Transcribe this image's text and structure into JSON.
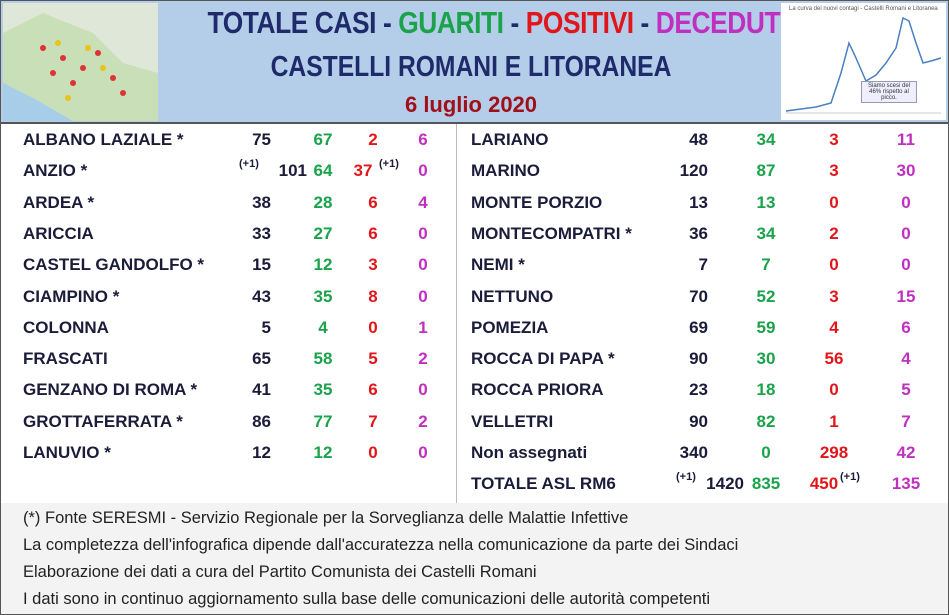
{
  "header": {
    "title_parts": [
      "TOTALE CASI",
      "GUARITI",
      "POSITIVI",
      "DECEDUTI"
    ],
    "title_separator": "-",
    "subtitle": "CASTELLI ROMANI E LITORANEA",
    "date": "6 luglio 2020",
    "chart_caption": "La curva dei nuovi contagi - Castelli Romani e Litoranea",
    "chart_note": "Siamo scesi del 46% rispetto al picco."
  },
  "table": {
    "left": [
      {
        "name": "ALBANO LAZIALE *",
        "total": "75",
        "guariti": "67",
        "positivi": "2",
        "deceduti": "6"
      },
      {
        "name": "ANZIO *",
        "total": "101",
        "total_note": "(+1)",
        "guariti": "64",
        "positivi": "37",
        "positivi_note": "(+1)",
        "deceduti": "0"
      },
      {
        "name": "ARDEA *",
        "total": "38",
        "guariti": "28",
        "positivi": "6",
        "deceduti": "4"
      },
      {
        "name": "ARICCIA",
        "total": "33",
        "guariti": "27",
        "positivi": "6",
        "deceduti": "0"
      },
      {
        "name": "CASTEL GANDOLFO *",
        "total": "15",
        "guariti": "12",
        "positivi": "3",
        "deceduti": "0"
      },
      {
        "name": "CIAMPINO *",
        "total": "43",
        "guariti": "35",
        "positivi": "8",
        "deceduti": "0"
      },
      {
        "name": "COLONNA",
        "total": "5",
        "guariti": "4",
        "positivi": "0",
        "deceduti": "1"
      },
      {
        "name": "FRASCATI",
        "total": "65",
        "guariti": "58",
        "positivi": "5",
        "deceduti": "2"
      },
      {
        "name": "GENZANO DI ROMA *",
        "total": "41",
        "guariti": "35",
        "positivi": "6",
        "deceduti": "0"
      },
      {
        "name": "GROTTAFERRATA *",
        "total": "86",
        "guariti": "77",
        "positivi": "7",
        "deceduti": "2"
      },
      {
        "name": "LANUVIO *",
        "total": "12",
        "guariti": "12",
        "positivi": "0",
        "deceduti": "0"
      }
    ],
    "right": [
      {
        "name": "LARIANO",
        "total": "48",
        "guariti": "34",
        "positivi": "3",
        "deceduti": "11"
      },
      {
        "name": "MARINO",
        "total": "120",
        "guariti": "87",
        "positivi": "3",
        "deceduti": "30"
      },
      {
        "name": "MONTE PORZIO",
        "total": "13",
        "guariti": "13",
        "positivi": "0",
        "deceduti": "0"
      },
      {
        "name": "MONTECOMPATRI *",
        "total": "36",
        "guariti": "34",
        "positivi": "2",
        "deceduti": "0"
      },
      {
        "name": "NEMI *",
        "total": "7",
        "guariti": "7",
        "positivi": "0",
        "deceduti": "0"
      },
      {
        "name": "NETTUNO",
        "total": "70",
        "guariti": "52",
        "positivi": "3",
        "deceduti": "15"
      },
      {
        "name": "POMEZIA",
        "total": "69",
        "guariti": "59",
        "positivi": "4",
        "deceduti": "6"
      },
      {
        "name": "ROCCA DI PAPA *",
        "total": "90",
        "guariti": "30",
        "positivi": "56",
        "deceduti": "4"
      },
      {
        "name": "ROCCA PRIORA",
        "total": "23",
        "guariti": "18",
        "positivi": "0",
        "deceduti": "5"
      },
      {
        "name": "VELLETRI",
        "total": "90",
        "guariti": "82",
        "positivi": "1",
        "deceduti": "7"
      },
      {
        "name": "Non assegnati",
        "total": "340",
        "guariti": "0",
        "positivi": "298",
        "deceduti": "42"
      },
      {
        "name": "TOTALE ASL RM6",
        "total": "1420",
        "total_note": "(+1)",
        "guariti": "835",
        "positivi": "450",
        "positivi_note": "(+1)",
        "deceduti": "135"
      }
    ]
  },
  "footer": [
    "(*) Fonte SERESMI - Servizio Regionale per la Sorveglianza delle Malattie Infettive",
    "La completezza dell'infografica dipende dall'accuratezza nella comunicazione da parte dei Sindaci",
    "Elaborazione dei dati a cura del Partito Comunista dei Castelli Romani",
    "I dati sono in continuo aggiornamento sulla base delle comunicazioni delle autorità competenti"
  ]
}
